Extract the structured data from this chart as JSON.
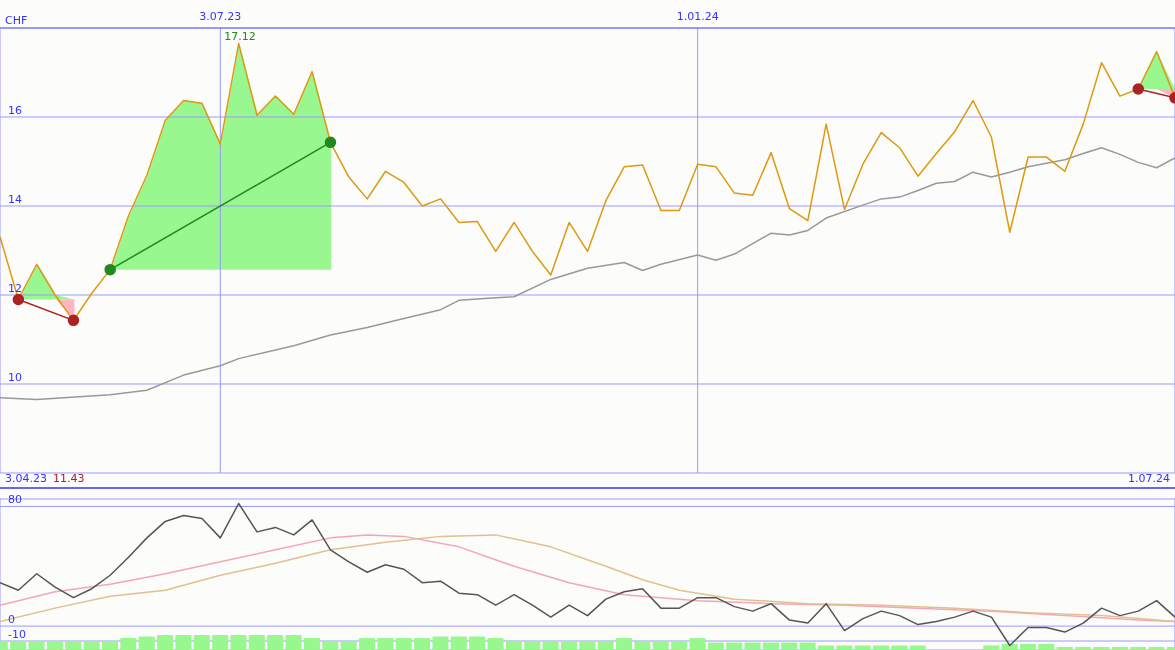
{
  "chart_data": [
    {
      "type": "line",
      "ylabel": "CHF",
      "annotations": [
        "17.12",
        "3.04.23",
        "11.43",
        "1.07.24"
      ],
      "x": [
        "2023-04-10",
        "2023-04-17",
        "2023-04-24",
        "2023-05-01",
        "2023-05-08",
        "2023-05-15",
        "2023-05-22",
        "2023-05-29",
        "2023-06-05",
        "2023-06-12",
        "2023-06-19",
        "2023-06-26",
        "2023-07-03",
        "2023-07-10",
        "2023-07-17",
        "2023-07-24",
        "2023-07-31",
        "2023-08-07",
        "2023-08-14",
        "2023-08-21",
        "2023-08-28",
        "2023-09-04",
        "2023-09-11",
        "2023-09-18",
        "2023-09-25",
        "2023-10-02",
        "2023-10-09",
        "2023-10-16",
        "2023-10-23",
        "2023-10-30",
        "2023-11-06",
        "2023-11-13",
        "2023-11-20",
        "2023-11-27",
        "2023-12-04",
        "2023-12-11",
        "2023-12-18",
        "2023-12-25",
        "2024-01-01",
        "2024-01-08",
        "2024-01-15",
        "2024-01-22",
        "2024-01-29",
        "2024-02-05",
        "2024-02-12",
        "2024-02-19",
        "2024-02-26",
        "2024-03-04",
        "2024-03-11",
        "2024-03-18",
        "2024-03-25",
        "2024-04-01",
        "2024-04-08",
        "2024-04-15",
        "2024-04-22",
        "2024-04-29",
        "2024-05-06",
        "2024-05-13",
        "2024-05-20",
        "2024-05-27",
        "2024-06-03",
        "2024-06-10",
        "2024-06-17",
        "2024-06-24",
        "2024-07-01"
      ],
      "series": [
        {
          "color": "#999999",
          "x": [
            "2023-04-10",
            "2023-04-24",
            "2023-05-22",
            "2023-06-05",
            "2023-06-19",
            "2023-07-03",
            "2023-07-10",
            "2023-07-31",
            "2023-08-14",
            "2023-08-28",
            "2023-09-11",
            "2023-09-25",
            "2023-10-02",
            "2023-10-16",
            "2023-10-23",
            "2023-11-06",
            "2023-11-20",
            "2023-12-04",
            "2023-12-11",
            "2023-12-18",
            "2024-01-01",
            "2024-01-08",
            "2024-01-15",
            "2024-01-29",
            "2024-02-05",
            "2024-02-12",
            "2024-02-19",
            "2024-03-04",
            "2024-03-11",
            "2024-03-18",
            "2024-03-25",
            "2024-04-01",
            "2024-04-08",
            "2024-04-15",
            "2024-04-22",
            "2024-04-29",
            "2024-05-06",
            "2024-05-20",
            "2024-05-27",
            "2024-06-03",
            "2024-06-10",
            "2024-06-17",
            "2024-06-24",
            "2024-07-01"
          ],
          "values": [
            9.69,
            9.65,
            9.76,
            9.86,
            10.2,
            10.41,
            10.57,
            10.86,
            11.1,
            11.27,
            11.47,
            11.67,
            11.88,
            11.94,
            11.96,
            12.35,
            12.6,
            12.73,
            12.55,
            12.69,
            12.9,
            12.78,
            12.92,
            13.39,
            13.35,
            13.45,
            13.73,
            14.02,
            14.16,
            14.2,
            14.35,
            14.51,
            14.55,
            14.76,
            14.65,
            14.76,
            14.88,
            15.04,
            15.18,
            15.31,
            15.16,
            14.98,
            14.86,
            15.08
          ]
        },
        {
          "color": "#dd9911",
          "values": [
            13.31,
            11.9,
            12.69,
            12.0,
            11.43,
            12.04,
            12.57,
            13.78,
            14.69,
            15.92,
            16.37,
            16.31,
            15.39,
            17.65,
            16.04,
            16.47,
            16.06,
            17.02,
            15.43,
            14.65,
            14.16,
            14.78,
            14.53,
            14.0,
            14.16,
            13.63,
            13.65,
            12.98,
            13.63,
            12.98,
            12.45,
            13.63,
            12.98,
            14.12,
            14.88,
            14.92,
            13.9,
            13.9,
            14.94,
            14.88,
            14.29,
            14.24,
            15.2,
            13.94,
            13.67,
            15.84,
            13.92,
            14.94,
            15.65,
            15.31,
            14.67,
            15.18,
            15.67,
            16.37,
            15.55,
            13.41,
            15.1,
            15.1,
            14.78,
            15.84,
            17.22,
            16.47,
            16.63,
            17.47,
            16.43
          ]
        },
        {
          "color": "#aa2222",
          "marker": "circle",
          "x": [
            "2023-04-17",
            "2023-05-08"
          ],
          "values": [
            11.9,
            11.43
          ]
        },
        {
          "color": "#228822",
          "marker": "circle",
          "x": [
            "2023-05-22",
            "2023-08-14"
          ],
          "values": [
            12.57,
            15.43
          ]
        },
        {
          "color": "#aa2222",
          "marker": "circle",
          "x": [
            "2024-06-17",
            "2024-07-01"
          ],
          "values": [
            16.63,
            16.43
          ]
        }
      ],
      "xlim": [
        "2023-04-10",
        "2024-07-01"
      ],
      "xticks": [
        {
          "value": "2023-07-03",
          "label": "3.07.23"
        },
        {
          "value": "2024-01-01",
          "label": "1.01.24"
        }
      ],
      "ylim": [
        8,
        18
      ],
      "yticks": [
        10,
        12,
        14,
        16
      ],
      "grid": true
    },
    {
      "type": "line",
      "tick_labels": "y",
      "x": [
        "2023-04-10",
        "2023-04-17",
        "2023-04-24",
        "2023-05-01",
        "2023-05-08",
        "2023-05-15",
        "2023-05-22",
        "2023-05-29",
        "2023-06-05",
        "2023-06-12",
        "2023-06-19",
        "2023-06-26",
        "2023-07-03",
        "2023-07-10",
        "2023-07-17",
        "2023-07-24",
        "2023-07-31",
        "2023-08-07",
        "2023-08-14",
        "2023-08-21",
        "2023-08-28",
        "2023-09-04",
        "2023-09-11",
        "2023-09-18",
        "2023-09-25",
        "2023-10-02",
        "2023-10-09",
        "2023-10-16",
        "2023-10-23",
        "2023-10-30",
        "2023-11-06",
        "2023-11-13",
        "2023-11-20",
        "2023-11-27",
        "2023-12-04",
        "2023-12-11",
        "2023-12-18",
        "2023-12-25",
        "2024-01-01",
        "2024-01-08",
        "2024-01-15",
        "2024-01-22",
        "2024-01-29",
        "2024-02-05",
        "2024-02-12",
        "2024-02-19",
        "2024-02-26",
        "2024-03-04",
        "2024-03-11",
        "2024-03-18",
        "2024-03-25",
        "2024-04-01",
        "2024-04-08",
        "2024-04-15",
        "2024-04-22",
        "2024-04-29",
        "2024-05-06",
        "2024-05-13",
        "2024-05-20",
        "2024-05-27",
        "2024-06-03",
        "2024-06-10",
        "2024-06-17",
        "2024-06-24",
        "2024-07-01"
      ],
      "series": [
        {
          "type": "bar",
          "color": "#99f78f",
          "values": [
            6,
            6,
            6,
            6,
            6,
            6,
            6,
            8,
            9,
            10,
            10,
            10,
            10,
            10,
            10,
            10,
            10,
            8,
            6,
            6,
            8,
            8,
            8,
            8,
            9,
            9,
            9,
            8,
            6,
            6,
            6,
            6,
            6,
            6,
            8,
            6,
            6,
            6,
            8,
            5,
            5,
            5,
            5,
            5,
            5,
            3,
            3,
            3,
            3,
            3,
            3,
            null,
            null,
            null,
            3,
            4,
            4,
            4,
            2,
            2,
            2,
            2,
            2,
            2,
            2
          ],
          "base": [
            -16,
            -16,
            -16,
            -16,
            -16,
            -16,
            -16,
            -16,
            -16,
            -16,
            -16,
            -16,
            -16,
            -16,
            -16,
            -16,
            -16,
            -16,
            -16,
            -16,
            -16,
            -16,
            -16,
            -16,
            -16,
            -16,
            -16,
            -16,
            -16,
            -16,
            -16,
            -16,
            -16,
            -16,
            -16,
            -16,
            -16,
            -16,
            -16,
            -16,
            -16,
            -16,
            -16,
            -16,
            -16,
            -16,
            -16,
            -16,
            -16,
            -16,
            -16,
            null,
            null,
            null,
            -16,
            -16,
            -16,
            -16,
            -16,
            -16,
            -16,
            -16,
            -16,
            -16,
            -16
          ]
        },
        {
          "color": "#f4a6b8",
          "x": [
            "2023-04-10",
            "2023-05-01",
            "2023-05-22",
            "2023-06-12",
            "2023-07-03",
            "2023-07-24",
            "2023-08-14",
            "2023-08-28",
            "2023-09-11",
            "2023-10-02",
            "2023-10-23",
            "2023-11-13",
            "2023-12-04",
            "2024-01-01",
            "2024-01-29",
            "2024-02-26",
            "2024-03-25",
            "2024-04-22",
            "2024-05-20",
            "2024-06-17",
            "2024-07-01"
          ],
          "values": [
            14,
            23,
            28,
            35,
            43,
            51,
            59,
            61,
            60,
            53,
            40,
            29,
            21,
            17,
            15,
            14,
            12,
            10,
            7,
            4,
            3
          ]
        },
        {
          "color": "#e0c08f",
          "x": [
            "2023-04-10",
            "2023-05-01",
            "2023-05-22",
            "2023-06-12",
            "2023-07-03",
            "2023-07-24",
            "2023-08-14",
            "2023-09-04",
            "2023-09-25",
            "2023-10-16",
            "2023-11-06",
            "2023-11-27",
            "2023-12-11",
            "2023-12-25",
            "2024-01-15",
            "2024-02-12",
            "2024-03-11",
            "2024-04-08",
            "2024-05-06",
            "2024-06-03",
            "2024-07-01"
          ],
          "values": [
            3,
            12,
            20,
            24,
            34,
            42,
            51,
            56,
            60,
            61,
            53,
            40,
            31,
            24,
            18,
            15,
            14,
            12,
            9,
            7,
            3
          ]
        },
        {
          "color": "#555555",
          "values": [
            29,
            24,
            35,
            26,
            19,
            25,
            34,
            46,
            59,
            70,
            74,
            72,
            59,
            82,
            63,
            66,
            61,
            71,
            51,
            43,
            36,
            41,
            38,
            29,
            30,
            22,
            21,
            14,
            21,
            14,
            6,
            14,
            7,
            18,
            23,
            25,
            12,
            12,
            19,
            19,
            13,
            10,
            15,
            4,
            2,
            15,
            -3,
            5,
            10,
            7,
            1,
            3,
            6,
            10,
            6,
            -13,
            -1,
            -1,
            -4,
            2,
            12,
            7,
            10,
            17,
            6
          ]
        }
      ],
      "xlim": [
        "2023-04-10",
        "2024-07-01"
      ],
      "xticks": [
        {
          "value": "2023-07-03",
          "label": null
        },
        {
          "value": "2024-01-01",
          "label": null
        }
      ],
      "ylim": [
        -16,
        85
      ],
      "yticks": [
        80,
        0,
        -10
      ],
      "grid": true
    }
  ]
}
